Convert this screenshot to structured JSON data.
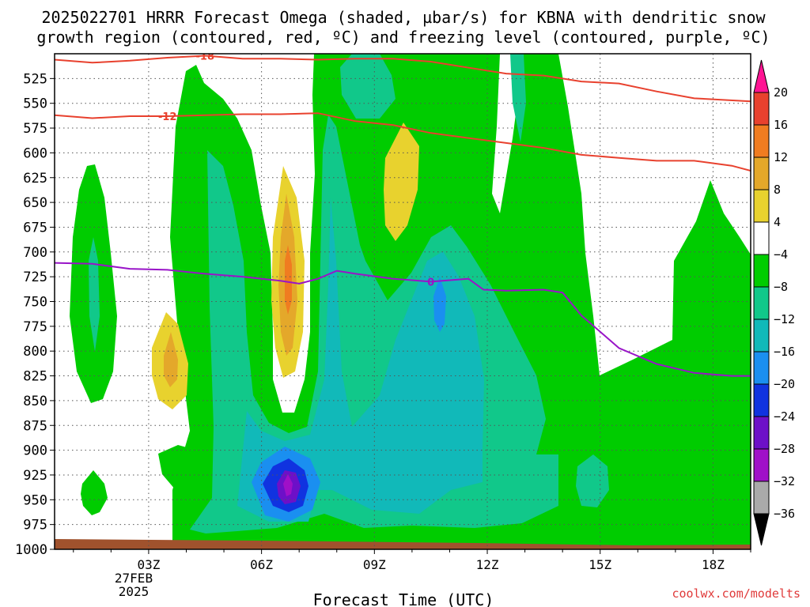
{
  "title_line1": "2025022701 HRRR Forecast Omega (shaded, µbar/s) for KBNA with dendritic snow",
  "title_line2": "growth region (contoured, red, ºC) and freezing level (contoured, purple, ºC)",
  "credit": "coolwx.com/modelts",
  "chart_data": {
    "type": "heatmap",
    "title": "2025022701 HRRR Forecast Omega (shaded, µbar/s) for KBNA with dendritic snow growth region (contoured, red, ºC) and freezing level (contoured, purple, ºC)",
    "xlabel": "Forecast Time (UTC)",
    "ylabel": "",
    "x_hours_range": [
      0.5,
      19
    ],
    "y_pressure_range": [
      1000,
      500
    ],
    "x_ticks": [
      {
        "hour": 3,
        "label": "03Z"
      },
      {
        "hour": 6,
        "label": "06Z"
      },
      {
        "hour": 9,
        "label": "09Z"
      },
      {
        "hour": 12,
        "label": "12Z"
      },
      {
        "hour": 15,
        "label": "15Z"
      },
      {
        "hour": 18,
        "label": "18Z"
      }
    ],
    "x_date_labels": [
      "27FEB",
      "2025"
    ],
    "y_ticks": [
      525,
      550,
      575,
      600,
      625,
      650,
      675,
      700,
      725,
      750,
      775,
      800,
      825,
      850,
      875,
      900,
      925,
      950,
      975,
      1000
    ],
    "grid": true,
    "colorbar": {
      "levels": [
        "20",
        "16",
        "12",
        "8",
        "4",
        "−4",
        "−8",
        "−12",
        "−16",
        "−20",
        "−24",
        "−28",
        "−32",
        "−36"
      ],
      "colors": [
        "#ff1493",
        "#e8412e",
        "#f07c20",
        "#e4a82a",
        "#e8d22e",
        "#ffffff",
        "#00cc00",
        "#11c88a",
        "#11b9b9",
        "#1a8ff0",
        "#1033e0",
        "#6d10c8",
        "#a010c8",
        "#aaaaaa",
        "#000000"
      ]
    },
    "contours": [
      {
        "label": "-18",
        "color": "#e8412e",
        "points": [
          [
            0.5,
            506
          ],
          [
            1.5,
            509
          ],
          [
            2.5,
            507
          ],
          [
            3.5,
            504
          ],
          [
            4.5,
            502
          ],
          [
            5.5,
            505
          ],
          [
            6.5,
            505
          ],
          [
            7.5,
            506
          ],
          [
            8.5,
            505
          ],
          [
            9.5,
            505
          ],
          [
            10.5,
            508
          ],
          [
            11.5,
            514
          ],
          [
            12.5,
            520
          ],
          [
            13.5,
            522
          ],
          [
            14.5,
            528
          ],
          [
            15.5,
            530
          ],
          [
            16.5,
            538
          ],
          [
            17.5,
            545
          ],
          [
            19,
            548
          ]
        ]
      },
      {
        "label": "-12",
        "color": "#e8412e",
        "points": [
          [
            0.5,
            562
          ],
          [
            1.5,
            565
          ],
          [
            2.5,
            563
          ],
          [
            3.5,
            563
          ],
          [
            4.5,
            562
          ],
          [
            5.5,
            561
          ],
          [
            6.5,
            561
          ],
          [
            7.5,
            560
          ],
          [
            8.5,
            568
          ],
          [
            9.5,
            572
          ],
          [
            10.5,
            580
          ],
          [
            11.5,
            585
          ],
          [
            12.5,
            590
          ],
          [
            13.5,
            595
          ],
          [
            14.5,
            602
          ],
          [
            15.5,
            605
          ],
          [
            16.5,
            608
          ],
          [
            17.5,
            608
          ],
          [
            18.5,
            613
          ],
          [
            19,
            618
          ]
        ]
      },
      {
        "label": "0",
        "color": "#9914c8",
        "points": [
          [
            0.5,
            711
          ],
          [
            1.5,
            712
          ],
          [
            2.5,
            717
          ],
          [
            3.5,
            718
          ],
          [
            4.5,
            722
          ],
          [
            5.5,
            725
          ],
          [
            6.5,
            729
          ],
          [
            7,
            732
          ],
          [
            7.5,
            727
          ],
          [
            8,
            719
          ],
          [
            8.5,
            722
          ],
          [
            9.5,
            727
          ],
          [
            10.5,
            730
          ],
          [
            11.5,
            727
          ],
          [
            11.9,
            738
          ],
          [
            12.5,
            739
          ],
          [
            13.5,
            738
          ],
          [
            14,
            741
          ],
          [
            14.5,
            764
          ],
          [
            15.5,
            797
          ],
          [
            16.5,
            813
          ],
          [
            17.5,
            822
          ],
          [
            18.5,
            825
          ],
          [
            19,
            825
          ]
        ]
      }
    ],
    "omega_regions": [
      {
        "level": "-8 to -4",
        "color": "#00cc00"
      },
      {
        "level": "-12 to -8",
        "color": "#11c88a"
      },
      {
        "level": "-16 to -12",
        "color": "#11b9b9"
      },
      {
        "level": "-20 to -16",
        "color": "#1a8ff0"
      },
      {
        "level": "-24 to -20",
        "color": "#1033e0"
      },
      {
        "level": "-28 to -24",
        "color": "#6d10c8"
      },
      {
        "level": "-32 to -28",
        "color": "#a010c8"
      },
      {
        "level": "4 to 8",
        "color": "#e8d22e"
      },
      {
        "level": "8 to 12",
        "color": "#e4a82a"
      },
      {
        "level": "12 to 16",
        "color": "#f07c20"
      }
    ]
  }
}
